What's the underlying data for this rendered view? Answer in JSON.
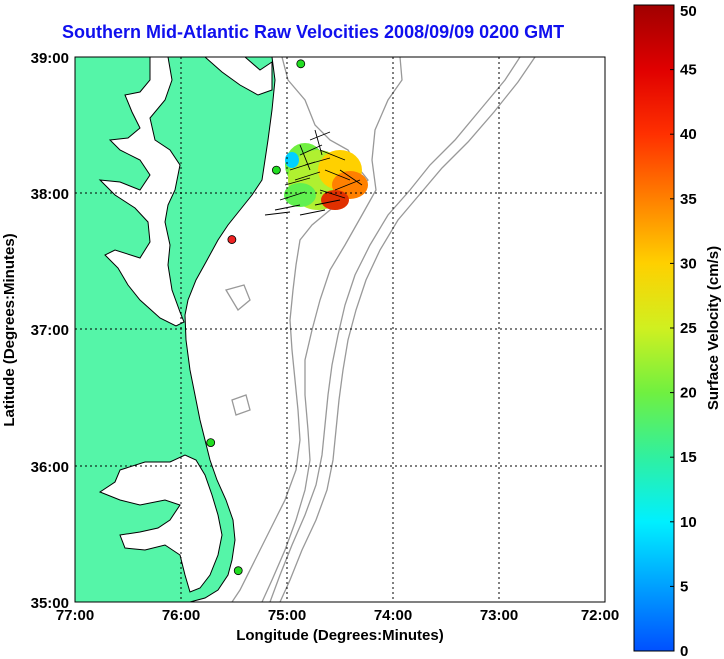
{
  "title": "Southern Mid-Atlantic Raw Velocities 2008/09/09 0200 GMT",
  "x_axis": {
    "label": "Longitude (Degrees:Minutes)",
    "ticks": [
      "77:00",
      "76:00",
      "75:00",
      "74:00",
      "73:00",
      "72:00"
    ]
  },
  "y_axis": {
    "label": "Latitude (Degrees:Minutes)",
    "ticks": [
      "39:00",
      "38:00",
      "37:00",
      "36:00",
      "35:00"
    ]
  },
  "colorbar": {
    "label": "Surface Velocity (cm/s)",
    "ticks": [
      "50",
      "45",
      "40",
      "35",
      "30",
      "25",
      "20",
      "15",
      "10",
      "5",
      "0"
    ],
    "min": 0,
    "max": 50
  },
  "colors": {
    "land": "#55f5a8",
    "ocean": "#ffffff",
    "bathymetry": "#999999",
    "grid": "#000000",
    "title": "#1010ee"
  },
  "stations": [
    {
      "lon": -74.87,
      "lat": 38.95,
      "color": "#22dd22"
    },
    {
      "lon": -75.1,
      "lat": 38.17,
      "color": "#22dd22"
    },
    {
      "lon": -75.52,
      "lat": 37.66,
      "color": "#ee2222"
    },
    {
      "lon": -75.72,
      "lat": 36.17,
      "color": "#22dd22"
    },
    {
      "lon": -75.46,
      "lat": 35.23,
      "color": "#22dd22"
    }
  ]
}
